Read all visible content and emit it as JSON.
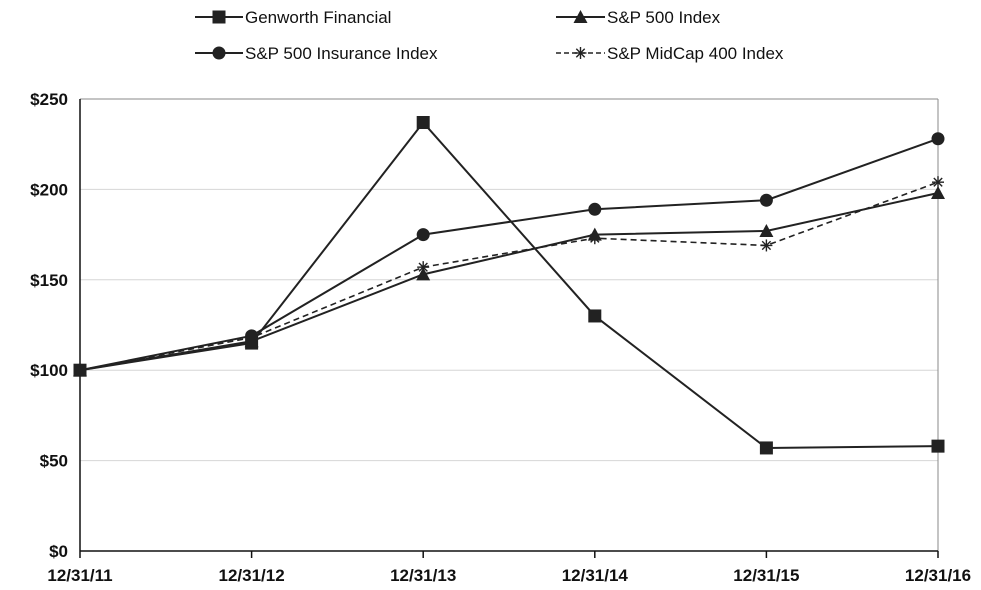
{
  "chart_data": {
    "type": "line",
    "categories": [
      "12/31/11",
      "12/31/12",
      "12/31/13",
      "12/31/14",
      "12/31/15",
      "12/31/16"
    ],
    "y_tick_labels": [
      "$0",
      "$50",
      "$100",
      "$150",
      "$200",
      "$250"
    ],
    "y_ticks": [
      0,
      50,
      100,
      150,
      200,
      250
    ],
    "ylim": [
      0,
      250
    ],
    "grid": true,
    "legend_position": "top",
    "series": [
      {
        "name": "Genworth Financial",
        "marker": "square",
        "dash": "solid",
        "color": "#222222",
        "values": [
          100,
          115,
          237,
          130,
          57,
          58
        ]
      },
      {
        "name": "S&P 500 Index",
        "marker": "triangle",
        "dash": "solid",
        "color": "#222222",
        "values": [
          100,
          116,
          153,
          175,
          177,
          198
        ]
      },
      {
        "name": "S&P 500 Insurance Index",
        "marker": "circle",
        "dash": "solid",
        "color": "#222222",
        "values": [
          100,
          119,
          175,
          189,
          194,
          228
        ]
      },
      {
        "name": "S&P MidCap 400 Index",
        "marker": "asterisk",
        "dash": "dashed",
        "color": "#222222",
        "values": [
          100,
          118,
          157,
          173,
          169,
          204
        ]
      }
    ]
  }
}
